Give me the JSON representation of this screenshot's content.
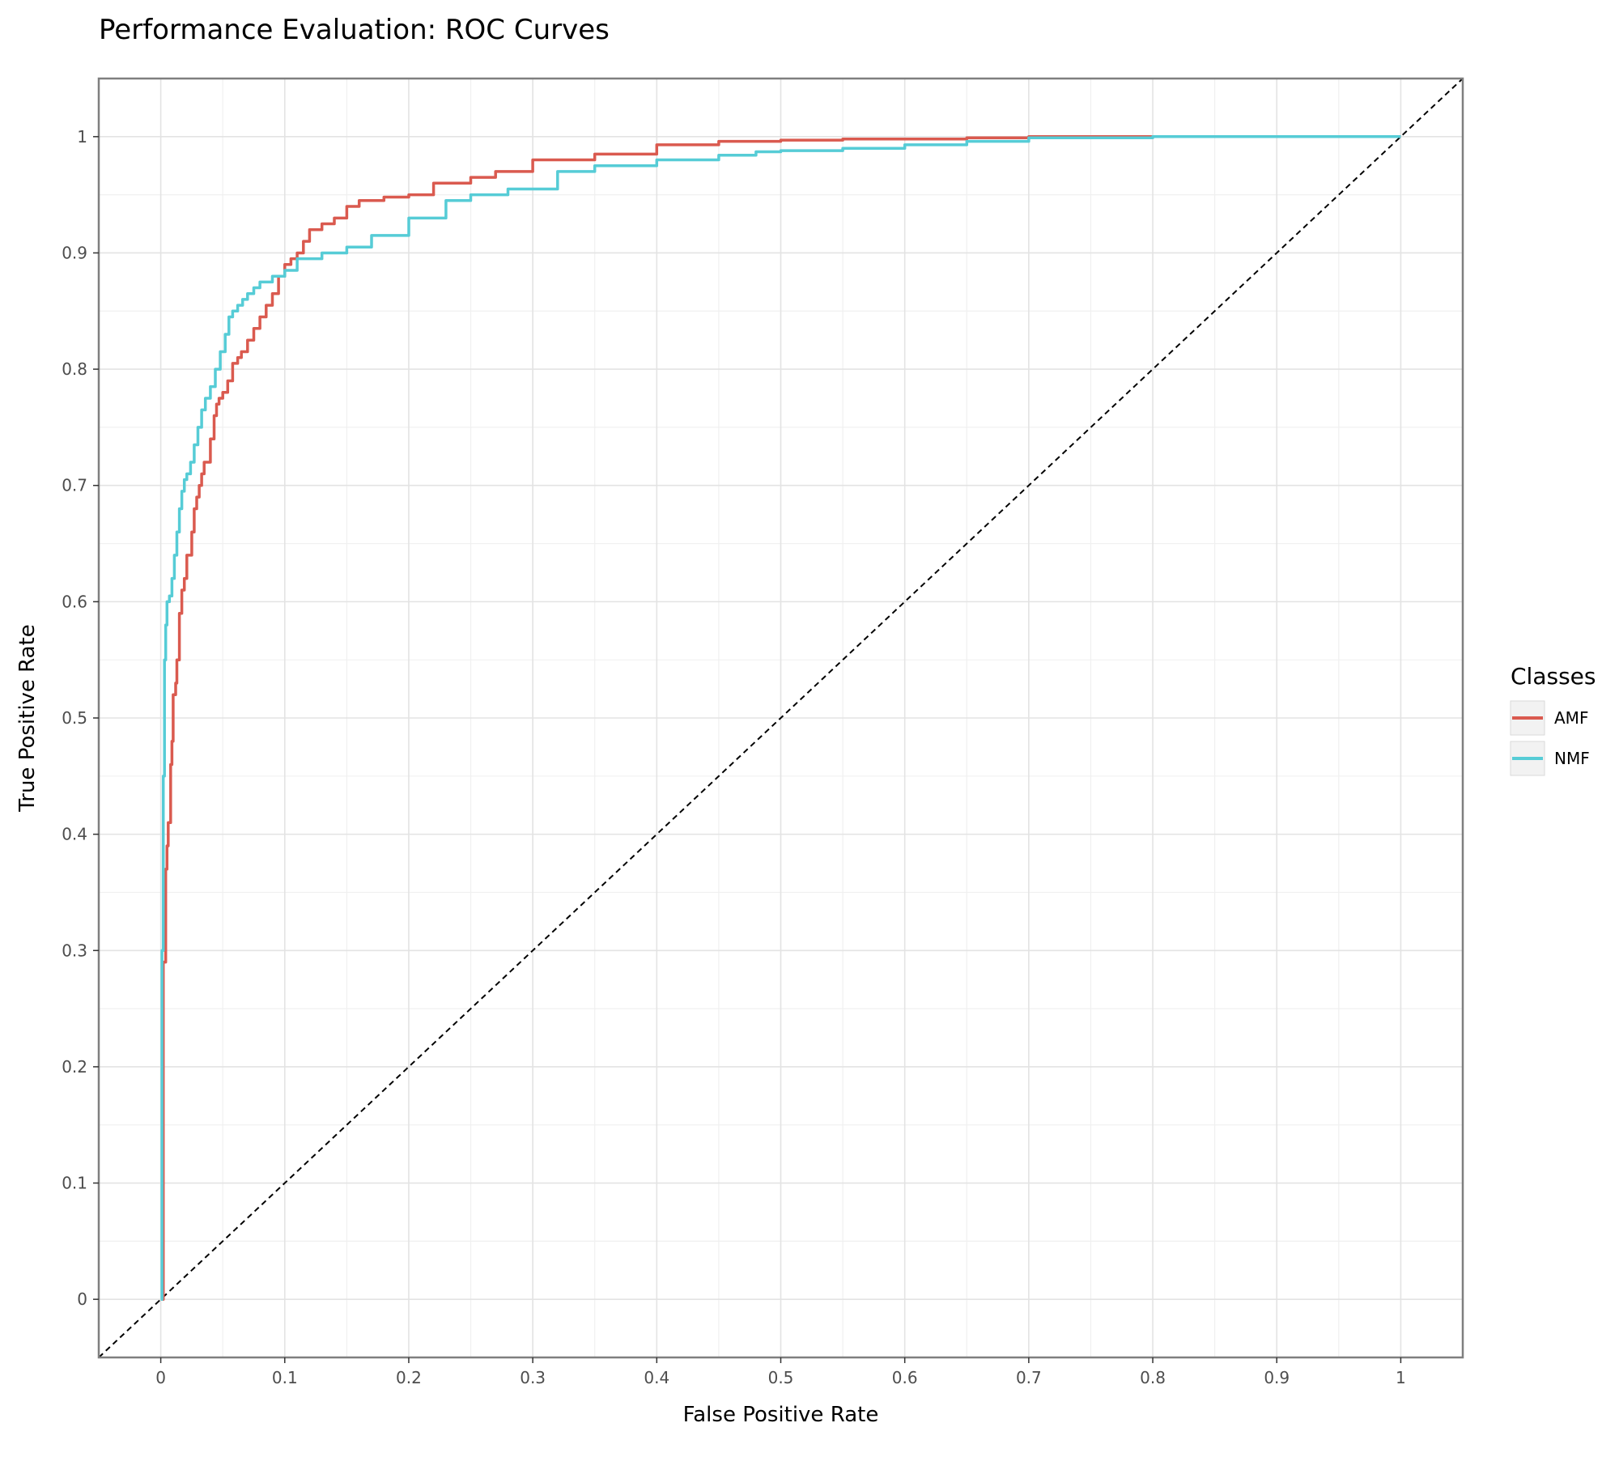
{
  "chart_data": {
    "type": "line",
    "title": "Performance Evaluation: ROC Curves",
    "xlabel": "False Positive Rate",
    "ylabel": "True Positive Rate",
    "xlim": [
      -0.05,
      1.05
    ],
    "ylim": [
      -0.05,
      1.05
    ],
    "xticks": [
      0,
      0.1,
      0.2,
      0.3,
      0.4,
      0.5,
      0.6,
      0.7,
      0.8,
      0.9,
      1
    ],
    "yticks": [
      0,
      0.1,
      0.2,
      0.3,
      0.4,
      0.5,
      0.6,
      0.7,
      0.8,
      0.9,
      1
    ],
    "xtick_labels": [
      "0",
      "0.1",
      "0.2",
      "0.3",
      "0.4",
      "0.5",
      "0.6",
      "0.7",
      "0.8",
      "0.9",
      "1"
    ],
    "ytick_labels": [
      "0",
      "0.1",
      "0.2",
      "0.3",
      "0.4",
      "0.5",
      "0.6",
      "0.7",
      "0.8",
      "0.9",
      "1"
    ],
    "grid": true,
    "legend": {
      "title": "Classes",
      "position": "right"
    },
    "reference_line": {
      "x": [
        -0.05,
        1.05
      ],
      "y": [
        -0.05,
        1.05
      ],
      "style": "dashed",
      "color": "#000000"
    },
    "series": [
      {
        "name": "AMF",
        "color": "#DA5A4F",
        "x": [
          0,
          0.002,
          0.002,
          0.004,
          0.005,
          0.006,
          0.008,
          0.009,
          0.01,
          0.012,
          0.013,
          0.015,
          0.017,
          0.019,
          0.021,
          0.025,
          0.027,
          0.029,
          0.031,
          0.033,
          0.035,
          0.04,
          0.043,
          0.045,
          0.047,
          0.05,
          0.054,
          0.058,
          0.062,
          0.065,
          0.07,
          0.075,
          0.08,
          0.085,
          0.09,
          0.095,
          0.1,
          0.105,
          0.11,
          0.115,
          0.12,
          0.13,
          0.14,
          0.15,
          0.16,
          0.18,
          0.2,
          0.22,
          0.25,
          0.27,
          0.3,
          0.35,
          0.4,
          0.45,
          0.5,
          0.55,
          0.6,
          0.65,
          0.7,
          0.8,
          0.9,
          1.0
        ],
        "y": [
          0,
          0.17,
          0.29,
          0.37,
          0.39,
          0.41,
          0.46,
          0.48,
          0.52,
          0.53,
          0.55,
          0.59,
          0.61,
          0.62,
          0.64,
          0.66,
          0.68,
          0.69,
          0.7,
          0.71,
          0.72,
          0.74,
          0.76,
          0.77,
          0.775,
          0.78,
          0.79,
          0.805,
          0.81,
          0.815,
          0.825,
          0.835,
          0.845,
          0.855,
          0.865,
          0.88,
          0.89,
          0.895,
          0.9,
          0.91,
          0.92,
          0.925,
          0.93,
          0.94,
          0.945,
          0.948,
          0.95,
          0.96,
          0.965,
          0.97,
          0.98,
          0.985,
          0.993,
          0.996,
          0.997,
          0.998,
          0.998,
          0.999,
          1.0,
          1.0,
          1.0,
          1.0
        ]
      },
      {
        "name": "NMF",
        "color": "#56CCD6",
        "x": [
          0,
          0.001,
          0.002,
          0.003,
          0.004,
          0.005,
          0.007,
          0.009,
          0.011,
          0.013,
          0.015,
          0.017,
          0.019,
          0.021,
          0.024,
          0.027,
          0.03,
          0.033,
          0.036,
          0.04,
          0.044,
          0.048,
          0.052,
          0.055,
          0.058,
          0.062,
          0.066,
          0.07,
          0.075,
          0.08,
          0.09,
          0.1,
          0.11,
          0.13,
          0.15,
          0.17,
          0.2,
          0.23,
          0.25,
          0.28,
          0.32,
          0.35,
          0.4,
          0.45,
          0.48,
          0.5,
          0.55,
          0.6,
          0.65,
          0.7,
          0.8,
          0.9,
          1.0
        ],
        "y": [
          0,
          0.3,
          0.45,
          0.55,
          0.58,
          0.6,
          0.605,
          0.62,
          0.64,
          0.66,
          0.68,
          0.695,
          0.705,
          0.71,
          0.72,
          0.735,
          0.75,
          0.765,
          0.775,
          0.785,
          0.8,
          0.815,
          0.83,
          0.845,
          0.85,
          0.855,
          0.86,
          0.865,
          0.87,
          0.875,
          0.88,
          0.885,
          0.895,
          0.9,
          0.905,
          0.915,
          0.93,
          0.945,
          0.95,
          0.955,
          0.97,
          0.975,
          0.98,
          0.984,
          0.987,
          0.988,
          0.99,
          0.993,
          0.996,
          0.999,
          1.0,
          1.0,
          1.0
        ]
      }
    ]
  }
}
